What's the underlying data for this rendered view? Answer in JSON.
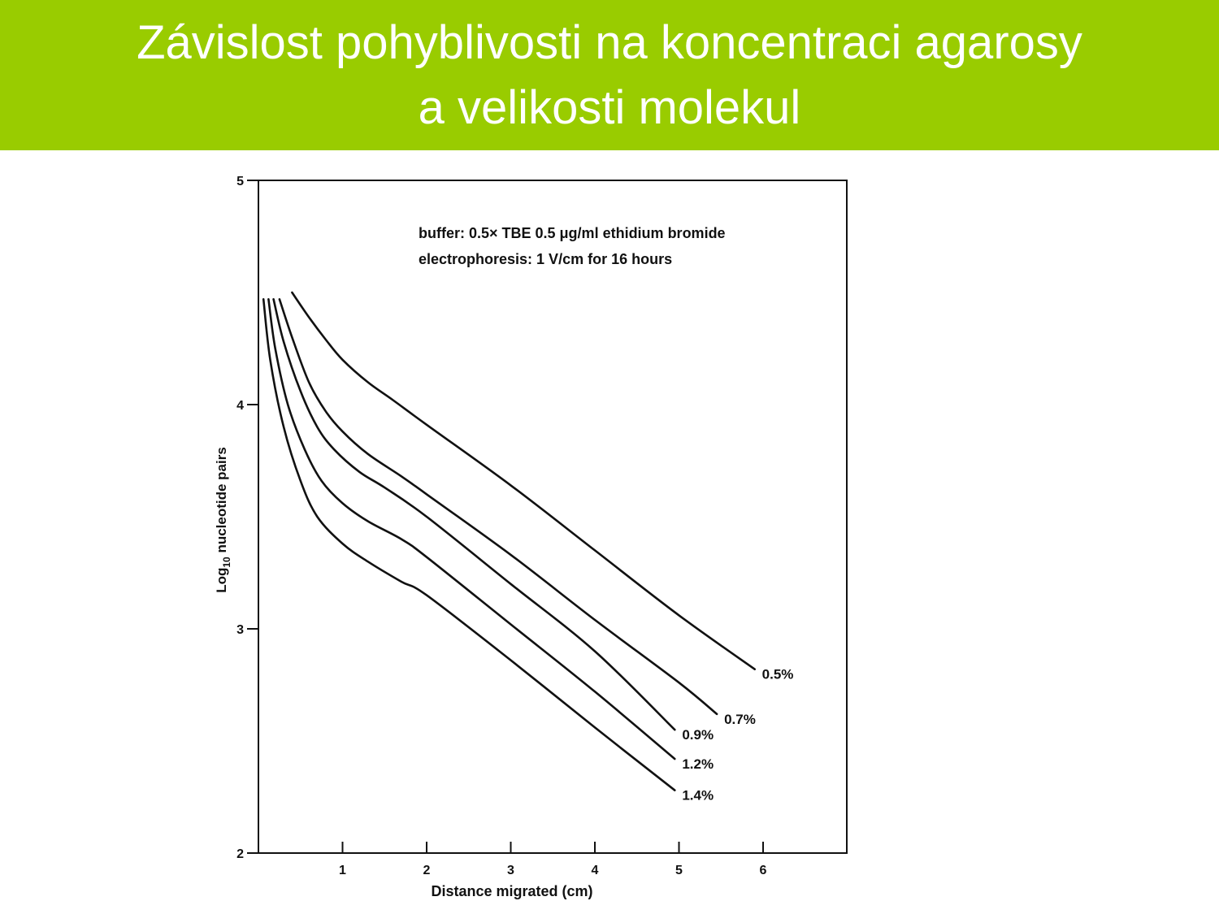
{
  "slide": {
    "title_line1": "Závislost pohyblivosti na koncentraci agarosy",
    "title_line2": "a velikosti molekul",
    "banner_color": "#99cc00",
    "title_color": "#ffffff"
  },
  "chart_data": {
    "type": "line",
    "title": "",
    "annotation_line1": "buffer: 0.5× TBE 0.5 μg/ml ethidium bromide",
    "annotation_line2": "electrophoresis: 1 V/cm for 16 hours",
    "xlabel": "Distance migrated (cm)",
    "ylabel_main": "Log",
    "ylabel_sub": "10",
    "ylabel_rest": " nucleotide pairs",
    "xlim": [
      0,
      7.1
    ],
    "ylim": [
      2,
      5
    ],
    "xticks": [
      1,
      2,
      3,
      4,
      5,
      6
    ],
    "xtick_labels": [
      "1",
      "2",
      "3",
      "4",
      "5",
      "6"
    ],
    "yticks": [
      2,
      3,
      4,
      5
    ],
    "ytick_labels": [
      "2",
      "3",
      "4",
      "5"
    ],
    "grid": false,
    "line_color": "#111111",
    "series": [
      {
        "name": "0.5%",
        "points": [
          [
            0.4,
            4.5
          ],
          [
            0.6,
            4.39
          ],
          [
            0.8,
            4.29
          ],
          [
            1.0,
            4.2
          ],
          [
            1.3,
            4.1
          ],
          [
            1.6,
            4.02
          ],
          [
            2.0,
            3.91
          ],
          [
            3.0,
            3.64
          ],
          [
            4.0,
            3.35
          ],
          [
            5.0,
            3.06
          ],
          [
            5.9,
            2.82
          ]
        ]
      },
      {
        "name": "0.7%",
        "points": [
          [
            0.25,
            4.47
          ],
          [
            0.4,
            4.3
          ],
          [
            0.6,
            4.1
          ],
          [
            0.8,
            3.97
          ],
          [
            1.0,
            3.88
          ],
          [
            1.3,
            3.78
          ],
          [
            1.7,
            3.68
          ],
          [
            2.0,
            3.6
          ],
          [
            3.0,
            3.33
          ],
          [
            4.0,
            3.04
          ],
          [
            5.0,
            2.76
          ],
          [
            5.45,
            2.62
          ]
        ]
      },
      {
        "name": "0.9%",
        "points": [
          [
            0.18,
            4.47
          ],
          [
            0.3,
            4.28
          ],
          [
            0.5,
            4.06
          ],
          [
            0.7,
            3.9
          ],
          [
            0.9,
            3.8
          ],
          [
            1.2,
            3.7
          ],
          [
            1.5,
            3.63
          ],
          [
            2.0,
            3.5
          ],
          [
            3.0,
            3.2
          ],
          [
            4.0,
            2.9
          ],
          [
            4.95,
            2.55
          ]
        ]
      },
      {
        "name": "1.2%",
        "points": [
          [
            0.12,
            4.47
          ],
          [
            0.2,
            4.25
          ],
          [
            0.35,
            4.0
          ],
          [
            0.55,
            3.8
          ],
          [
            0.75,
            3.66
          ],
          [
            1.0,
            3.56
          ],
          [
            1.3,
            3.48
          ],
          [
            1.7,
            3.4
          ],
          [
            2.0,
            3.32
          ],
          [
            3.0,
            3.02
          ],
          [
            4.0,
            2.72
          ],
          [
            4.95,
            2.42
          ]
        ]
      },
      {
        "name": "1.4%",
        "points": [
          [
            0.06,
            4.47
          ],
          [
            0.14,
            4.2
          ],
          [
            0.3,
            3.9
          ],
          [
            0.5,
            3.66
          ],
          [
            0.7,
            3.5
          ],
          [
            1.0,
            3.38
          ],
          [
            1.3,
            3.3
          ],
          [
            1.7,
            3.21
          ],
          [
            2.0,
            3.15
          ],
          [
            3.0,
            2.86
          ],
          [
            4.0,
            2.56
          ],
          [
            4.95,
            2.28
          ]
        ]
      }
    ]
  }
}
